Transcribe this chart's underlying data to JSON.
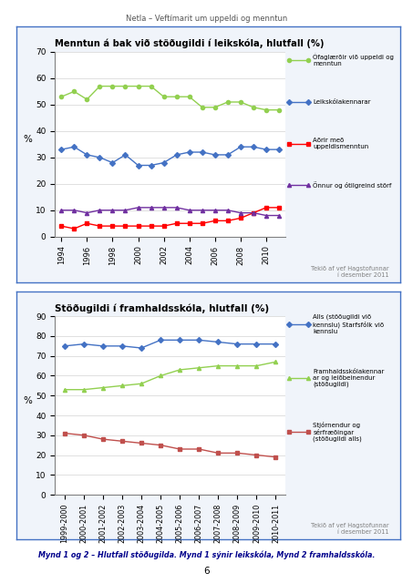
{
  "page_title": "Netla – Veftímarit um uppeldi og menntun",
  "chart1": {
    "title": "Menntun á bak við stöðugildi í leikskóla, hlutfall (%)",
    "ylabel": "%",
    "ylim": [
      0,
      70
    ],
    "yticks": [
      0,
      10,
      20,
      30,
      40,
      50,
      60,
      70
    ],
    "years": [
      1994,
      1995,
      1996,
      1997,
      1998,
      1999,
      2000,
      2001,
      2002,
      2003,
      2004,
      2005,
      2006,
      2007,
      2008,
      2009,
      2010,
      2011
    ],
    "xlabels": [
      "1994",
      "1996",
      "1998",
      "2000",
      "2002",
      "2004",
      "2006",
      "2008",
      "2010"
    ],
    "xtick_years": [
      1994,
      1996,
      1998,
      2000,
      2002,
      2004,
      2006,
      2008,
      2010
    ],
    "note": "Tekið af vef Hagstofunnar\ní desember 2011",
    "series": [
      {
        "label": "Ófaglærðir við uppeldi og\nmenntun",
        "color": "#92d050",
        "marker": "o",
        "markersize": 3,
        "data": [
          53,
          55,
          52,
          57,
          57,
          57,
          57,
          57,
          53,
          53,
          53,
          49,
          49,
          51,
          51,
          49,
          48,
          48
        ]
      },
      {
        "label": "Leikskólakennarar",
        "color": "#4472c4",
        "marker": "D",
        "markersize": 3,
        "data": [
          33,
          34,
          31,
          30,
          28,
          31,
          27,
          27,
          28,
          31,
          32,
          32,
          31,
          31,
          34,
          34,
          33,
          33
        ]
      },
      {
        "label": "Aðrir með\nuppeldismenntun",
        "color": "#ff0000",
        "marker": "s",
        "markersize": 3,
        "data": [
          4,
          3,
          5,
          4,
          4,
          4,
          4,
          4,
          4,
          5,
          5,
          5,
          6,
          6,
          7,
          9,
          11,
          11
        ]
      },
      {
        "label": "Önnur og ótilgreind störf",
        "color": "#7030a0",
        "marker": "^",
        "markersize": 3,
        "data": [
          10,
          10,
          9,
          10,
          10,
          10,
          11,
          11,
          11,
          11,
          10,
          10,
          10,
          10,
          9,
          9,
          8,
          8
        ]
      }
    ]
  },
  "chart2": {
    "title": "Stöðugildi í framhaldsskóla, hlutfall (%)",
    "ylabel": "%",
    "ylim": [
      0,
      90
    ],
    "yticks": [
      0,
      10,
      20,
      30,
      40,
      50,
      60,
      70,
      80,
      90
    ],
    "xlabels": [
      "1999-2000",
      "2000-2001",
      "2001-2002",
      "2002-2003",
      "2003-2004",
      "2004-2005",
      "2005-2006",
      "2006-2007",
      "2007-2008",
      "2008-2009",
      "2009-2010",
      "2010-2011"
    ],
    "note": "Tekið af vef Hagstofunnar\ní desember 2011",
    "series": [
      {
        "label": "Alls (stöðugildi við\nkennslu) Starfsfólk við\nkennslu",
        "color": "#4472c4",
        "marker": "D",
        "markersize": 3,
        "data": [
          75,
          76,
          75,
          75,
          74,
          78,
          78,
          78,
          77,
          76,
          76,
          76
        ]
      },
      {
        "label": "Framhaldsskólakennar\nar og leiðbeinendur\n(stöðugildi)",
        "color": "#92d050",
        "marker": "^",
        "markersize": 3,
        "data": [
          53,
          53,
          54,
          55,
          56,
          60,
          63,
          64,
          65,
          65,
          65,
          67
        ]
      },
      {
        "label": "Stjórnendur og\nsérfræðingar\n(stöðugildi alls)",
        "color": "#c0504d",
        "marker": "s",
        "markersize": 3,
        "data": [
          31,
          30,
          28,
          27,
          26,
          25,
          23,
          23,
          21,
          21,
          20,
          19
        ]
      }
    ]
  },
  "caption": "Mynd 1 og 2 – Hlutfall stöðugilda. Mynd 1 sýnir leikskóla, Mynd 2 framhaldsskóla.",
  "page_num": "6",
  "box_color": "#4472c4",
  "background_color": "#f0f4fa"
}
